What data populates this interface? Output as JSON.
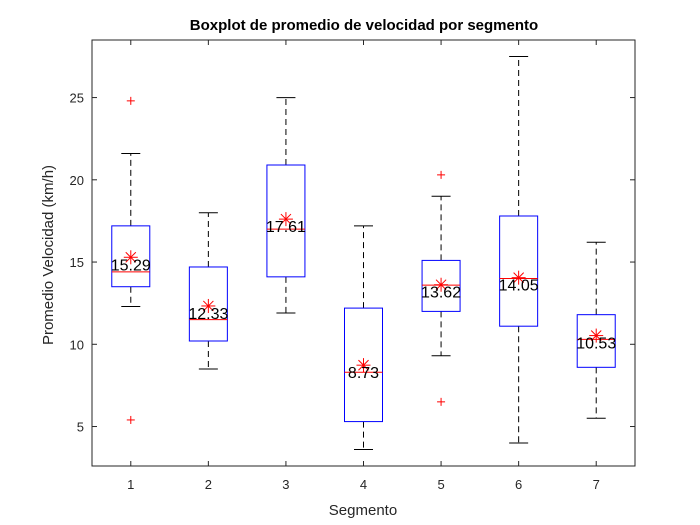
{
  "chart_data": {
    "type": "boxplot",
    "title": "Boxplot de promedio de velocidad por segmento",
    "xlabel": "Segmento",
    "ylabel": "Promedio Velocidad (km/h)",
    "xlim": [
      0.5,
      7.5
    ],
    "ylim": [
      2.6,
      28.5
    ],
    "yticks": [
      5,
      10,
      15,
      20,
      25
    ],
    "categories": [
      "1",
      "2",
      "3",
      "4",
      "5",
      "6",
      "7"
    ],
    "grid": false,
    "colors": {
      "box": "#0000ff",
      "median": "#ff0000",
      "whisker": "#000000",
      "outlier": "#ff0000",
      "mean_marker": "#ff0000",
      "axis": "#262626"
    },
    "boxes": [
      {
        "category": "1",
        "whisker_low": 12.3,
        "q1": 13.5,
        "median": 14.4,
        "q3": 17.2,
        "whisker_high": 21.6,
        "outliers": [
          24.8,
          5.4
        ],
        "mean": 15.29,
        "mean_label": "15.29"
      },
      {
        "category": "2",
        "whisker_low": 8.5,
        "q1": 10.2,
        "median": 11.5,
        "q3": 14.7,
        "whisker_high": 18.0,
        "outliers": [],
        "mean": 12.33,
        "mean_label": "12.33"
      },
      {
        "category": "3",
        "whisker_low": 11.9,
        "q1": 14.1,
        "median": 17.0,
        "q3": 20.9,
        "whisker_high": 25.0,
        "outliers": [],
        "mean": 17.61,
        "mean_label": "17.61"
      },
      {
        "category": "4",
        "whisker_low": 3.6,
        "q1": 5.3,
        "median": 8.3,
        "q3": 12.2,
        "whisker_high": 17.2,
        "outliers": [],
        "mean": 8.73,
        "mean_label": "8.73"
      },
      {
        "category": "5",
        "whisker_low": 9.3,
        "q1": 12.0,
        "median": 13.6,
        "q3": 15.1,
        "whisker_high": 19.0,
        "outliers": [
          20.3,
          6.5
        ],
        "mean": 13.62,
        "mean_label": "13.62"
      },
      {
        "category": "6",
        "whisker_low": 4.0,
        "q1": 11.1,
        "median": 14.0,
        "q3": 17.8,
        "whisker_high": 27.5,
        "outliers": [],
        "mean": 14.05,
        "mean_label": "14.05"
      },
      {
        "category": "7",
        "whisker_low": 5.5,
        "q1": 8.6,
        "median": 10.3,
        "q3": 11.8,
        "whisker_high": 16.2,
        "outliers": [],
        "mean": 10.53,
        "mean_label": "10.53"
      }
    ]
  }
}
